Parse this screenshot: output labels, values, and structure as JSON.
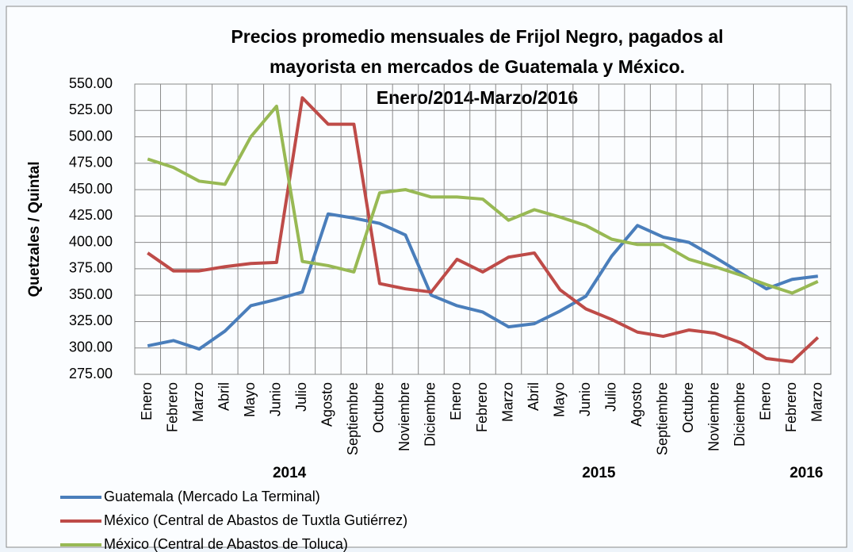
{
  "chart_data": {
    "type": "line",
    "title": [
      "Precios promedio mensuales de Frijol Negro, pagados al",
      "mayorista en mercados de Guatemala y México.",
      "Enero/2014-Marzo/2016"
    ],
    "y_label": "Quetzales / Quintal",
    "categories": [
      "Enero",
      "Febrero",
      "Marzo",
      "Abril",
      "Mayo",
      "Junio",
      "Julio",
      "Agosto",
      "Septiembre",
      "Octubre",
      "Noviembre",
      "Diciembre",
      "Enero",
      "Febrero",
      "Marzo",
      "Abril",
      "Mayo",
      "Junio",
      "Julio",
      "Agosto",
      "Septiembre",
      "Octubre",
      "Noviembre",
      "Diciembre",
      "Enero",
      "Febrero",
      "Marzo"
    ],
    "x_groups": [
      "2014",
      "2015",
      "2016"
    ],
    "series": [
      {
        "name": "Guatemala (Mercado La Terminal)",
        "color": "#4a7ebb",
        "values": [
          302,
          307,
          299,
          316,
          340,
          346,
          353,
          427,
          423,
          418,
          407,
          350,
          340,
          334,
          320,
          323,
          335,
          349,
          387,
          416,
          405,
          400,
          386,
          371,
          356,
          365,
          368
        ]
      },
      {
        "name": "México (Central de Abastos de Tuxtla Gutiérrez)",
        "color": "#be4b48",
        "values": [
          390,
          373,
          373,
          377,
          380,
          381,
          537,
          512,
          512,
          361,
          356,
          353,
          384,
          372,
          386,
          390,
          355,
          337,
          327,
          315,
          311,
          317,
          314,
          305,
          290,
          287,
          310
        ]
      },
      {
        "name": "México (Central de Abastos de Toluca)",
        "color": "#98b954",
        "values": [
          479,
          471,
          458,
          455,
          500,
          529,
          382,
          378,
          372,
          447,
          450,
          443,
          443,
          441,
          421,
          431,
          424,
          416,
          403,
          398,
          398,
          384,
          377,
          369,
          360,
          352,
          363
        ]
      }
    ],
    "ylim": [
      275,
      550
    ],
    "yticks": [
      {
        "value": 275,
        "label": "275.00"
      },
      {
        "value": 300,
        "label": "300.00"
      },
      {
        "value": 325,
        "label": "325.00"
      },
      {
        "value": 350,
        "label": "350.00"
      },
      {
        "value": 375,
        "label": "375.00"
      },
      {
        "value": 400,
        "label": "400.00"
      },
      {
        "value": 425,
        "label": "425.00"
      },
      {
        "value": 450,
        "label": "450.00"
      },
      {
        "value": 475,
        "label": "475.00"
      },
      {
        "value": 500,
        "label": "500.00"
      },
      {
        "value": 525,
        "label": "525.00"
      },
      {
        "value": 550,
        "label": "550.00"
      }
    ],
    "grid": true,
    "legend": "bottom-left"
  }
}
